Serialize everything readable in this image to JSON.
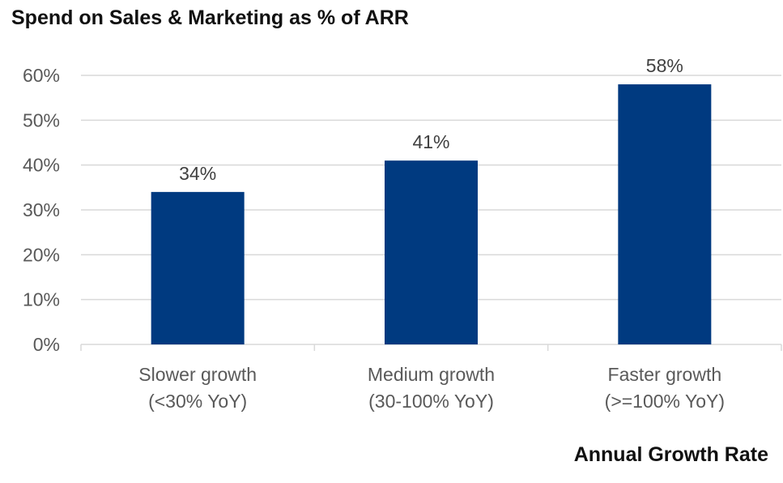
{
  "chart_data": {
    "type": "bar",
    "title": "Spend on Sales & Marketing as % of ARR",
    "xlabel": "Annual Growth Rate",
    "ylabel": "",
    "categories": [
      [
        "Slower growth",
        "(<30% YoY)"
      ],
      [
        "Medium growth",
        "(30-100% YoY)"
      ],
      [
        "Faster growth",
        "(>=100% YoY)"
      ]
    ],
    "values": [
      34,
      41,
      58
    ],
    "value_labels": [
      "34%",
      "41%",
      "58%"
    ],
    "ylim": [
      0,
      60
    ],
    "yticks": [
      0,
      10,
      20,
      30,
      40,
      50,
      60
    ],
    "ytick_labels": [
      "0%",
      "10%",
      "20%",
      "30%",
      "40%",
      "50%",
      "60%"
    ],
    "grid": true,
    "legend": "none",
    "bar_color": "#003A80",
    "grid_color": "#D9D9D9"
  }
}
